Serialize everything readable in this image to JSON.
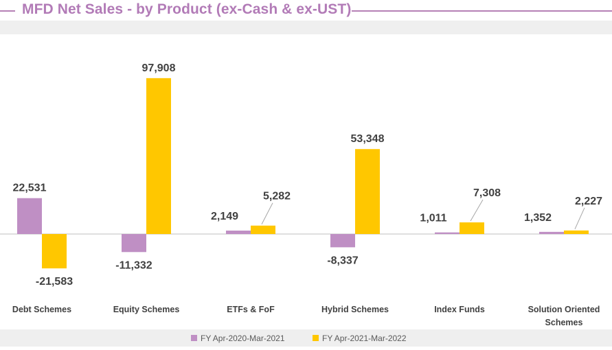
{
  "title": "MFD Net Sales - by Product (ex-Cash & ex-UST)",
  "colors": {
    "title": "#b27bb7",
    "series1": "#bf8fc4",
    "series2": "#ffc700",
    "axis": "#bfbfbf"
  },
  "chart_data": {
    "type": "bar",
    "title": "MFD Net Sales - by Product (ex-Cash & ex-UST)",
    "categories": [
      "Debt Schemes",
      "Equity Schemes",
      "ETFs & FoF",
      "Hybrid Schemes",
      "Index Funds",
      "Solution Oriented Schemes"
    ],
    "category_lines": [
      [
        "Debt Schemes"
      ],
      [
        "Equity Schemes"
      ],
      [
        "ETFs & FoF"
      ],
      [
        "Hybrid Schemes"
      ],
      [
        "Index Funds"
      ],
      [
        "Solution Oriented",
        "Schemes"
      ]
    ],
    "series": [
      {
        "name": "FY Apr-2020-Mar-2021",
        "values": [
          22531,
          -11332,
          2149,
          -8337,
          1011,
          1352
        ],
        "labels": [
          "22,531",
          "-11,332",
          "2,149",
          "-8,337",
          "1,011",
          "1,352"
        ]
      },
      {
        "name": "FY Apr-2021-Mar-2022",
        "values": [
          -21583,
          97908,
          5282,
          53348,
          7308,
          2227
        ],
        "labels": [
          "-21,583",
          "97,908",
          "5,282",
          "53,348",
          "7,308",
          "2,227"
        ]
      }
    ],
    "legend": "bottom",
    "grid": false
  }
}
